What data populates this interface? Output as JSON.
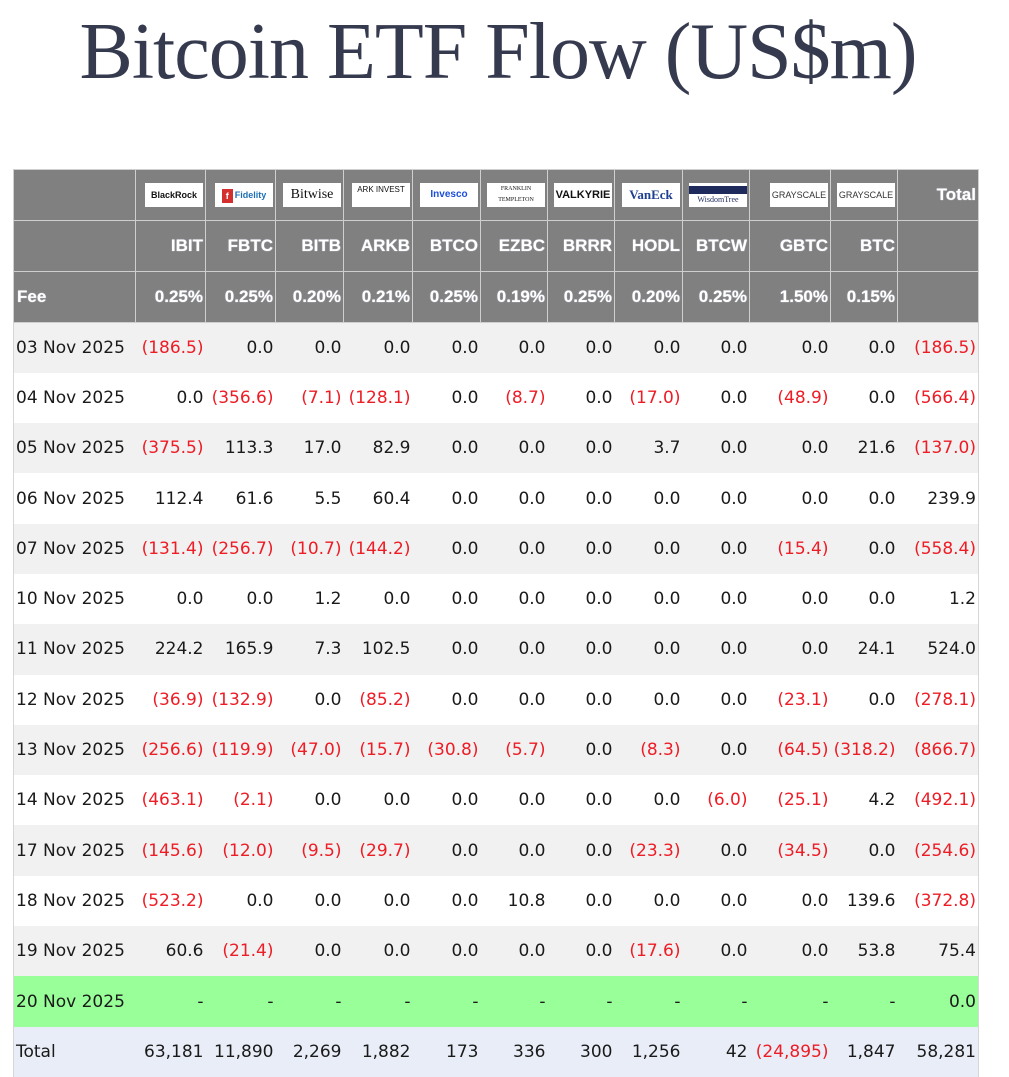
{
  "title": "Bitcoin ETF Flow (US$m)",
  "colors": {
    "header_bg": "#808080",
    "header_text": "#ffffff",
    "negative": "#ee1c25",
    "row_alt": "#f1f1f1",
    "highlight_row": "#99ff99",
    "total_row": "#e8edf7",
    "title": "#363a4f"
  },
  "header": {
    "issuers": [
      "BlackRock",
      "Fidelity",
      "Bitwise",
      "ARK INVEST",
      "Invesco",
      "FRANKLIN TEMPLETON",
      "VALKYRIE",
      "VanEck",
      "WisdomTree",
      "GRAYSCALE",
      "GRAYSCALE"
    ],
    "total_label": "Total",
    "tickers": [
      "IBIT",
      "FBTC",
      "BITB",
      "ARKB",
      "BTCO",
      "EZBC",
      "BRRR",
      "HODL",
      "BTCW",
      "GBTC",
      "BTC"
    ],
    "fee_label": "Fee",
    "fees": [
      "0.25%",
      "0.25%",
      "0.20%",
      "0.21%",
      "0.25%",
      "0.19%",
      "0.25%",
      "0.20%",
      "0.25%",
      "1.50%",
      "0.15%"
    ]
  },
  "rows": [
    {
      "date": "03 Nov 2025",
      "values": [
        "(186.5)",
        "0.0",
        "0.0",
        "0.0",
        "0.0",
        "0.0",
        "0.0",
        "0.0",
        "0.0",
        "0.0",
        "0.0",
        "(186.5)"
      ]
    },
    {
      "date": "04 Nov 2025",
      "values": [
        "0.0",
        "(356.6)",
        "(7.1)",
        "(128.1)",
        "0.0",
        "(8.7)",
        "0.0",
        "(17.0)",
        "0.0",
        "(48.9)",
        "0.0",
        "(566.4)"
      ]
    },
    {
      "date": "05 Nov 2025",
      "values": [
        "(375.5)",
        "113.3",
        "17.0",
        "82.9",
        "0.0",
        "0.0",
        "0.0",
        "3.7",
        "0.0",
        "0.0",
        "21.6",
        "(137.0)"
      ]
    },
    {
      "date": "06 Nov 2025",
      "values": [
        "112.4",
        "61.6",
        "5.5",
        "60.4",
        "0.0",
        "0.0",
        "0.0",
        "0.0",
        "0.0",
        "0.0",
        "0.0",
        "239.9"
      ]
    },
    {
      "date": "07 Nov 2025",
      "values": [
        "(131.4)",
        "(256.7)",
        "(10.7)",
        "(144.2)",
        "0.0",
        "0.0",
        "0.0",
        "0.0",
        "0.0",
        "(15.4)",
        "0.0",
        "(558.4)"
      ]
    },
    {
      "date": "10 Nov 2025",
      "values": [
        "0.0",
        "0.0",
        "1.2",
        "0.0",
        "0.0",
        "0.0",
        "0.0",
        "0.0",
        "0.0",
        "0.0",
        "0.0",
        "1.2"
      ]
    },
    {
      "date": "11 Nov 2025",
      "values": [
        "224.2",
        "165.9",
        "7.3",
        "102.5",
        "0.0",
        "0.0",
        "0.0",
        "0.0",
        "0.0",
        "0.0",
        "24.1",
        "524.0"
      ]
    },
    {
      "date": "12 Nov 2025",
      "values": [
        "(36.9)",
        "(132.9)",
        "0.0",
        "(85.2)",
        "0.0",
        "0.0",
        "0.0",
        "0.0",
        "0.0",
        "(23.1)",
        "0.0",
        "(278.1)"
      ]
    },
    {
      "date": "13 Nov 2025",
      "values": [
        "(256.6)",
        "(119.9)",
        "(47.0)",
        "(15.7)",
        "(30.8)",
        "(5.7)",
        "0.0",
        "(8.3)",
        "0.0",
        "(64.5)",
        "(318.2)",
        "(866.7)"
      ]
    },
    {
      "date": "14 Nov 2025",
      "values": [
        "(463.1)",
        "(2.1)",
        "0.0",
        "0.0",
        "0.0",
        "0.0",
        "0.0",
        "0.0",
        "(6.0)",
        "(25.1)",
        "4.2",
        "(492.1)"
      ]
    },
    {
      "date": "17 Nov 2025",
      "values": [
        "(145.6)",
        "(12.0)",
        "(9.5)",
        "(29.7)",
        "0.0",
        "0.0",
        "0.0",
        "(23.3)",
        "0.0",
        "(34.5)",
        "0.0",
        "(254.6)"
      ]
    },
    {
      "date": "18 Nov 2025",
      "values": [
        "(523.2)",
        "0.0",
        "0.0",
        "0.0",
        "0.0",
        "10.8",
        "0.0",
        "0.0",
        "0.0",
        "0.0",
        "139.6",
        "(372.8)"
      ]
    },
    {
      "date": "19 Nov 2025",
      "values": [
        "60.6",
        "(21.4)",
        "0.0",
        "0.0",
        "0.0",
        "0.0",
        "0.0",
        "(17.6)",
        "0.0",
        "0.0",
        "53.8",
        "75.4"
      ]
    },
    {
      "date": "20 Nov 2025",
      "values": [
        "-",
        "-",
        "-",
        "-",
        "-",
        "-",
        "-",
        "-",
        "-",
        "-",
        "-",
        "0.0"
      ],
      "highlight": true
    }
  ],
  "total_row": {
    "label": "Total",
    "values": [
      "63,181",
      "11,890",
      "2,269",
      "1,882",
      "173",
      "336",
      "300",
      "1,256",
      "42",
      "(24,895)",
      "1,847",
      "58,281"
    ]
  }
}
